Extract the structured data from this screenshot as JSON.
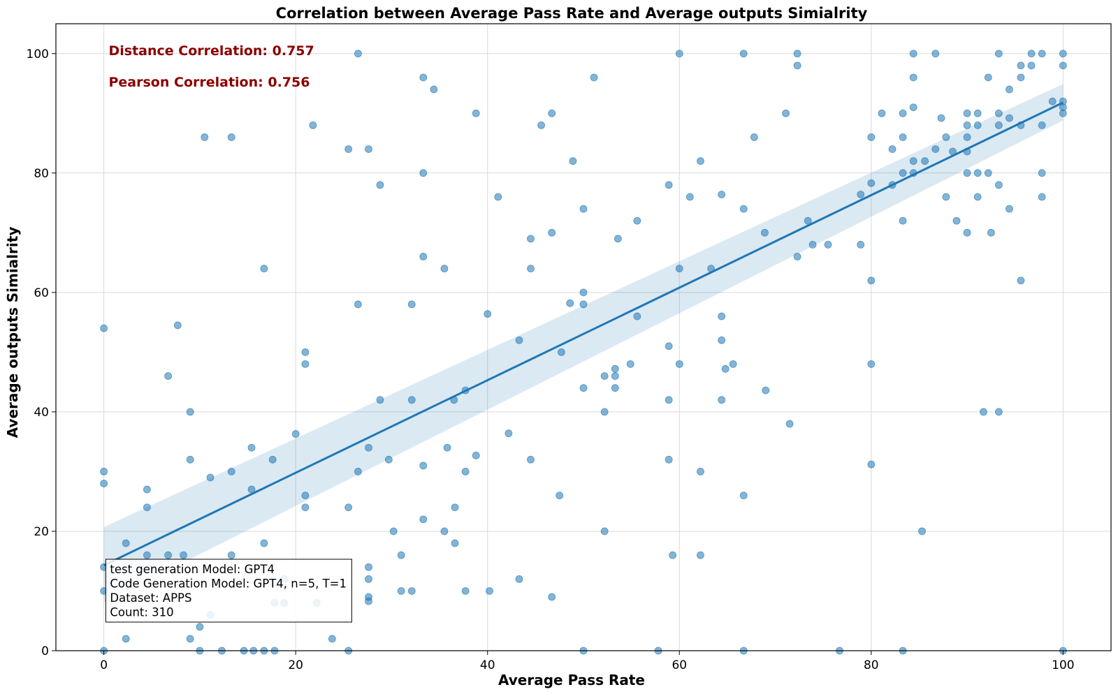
{
  "chart_data": {
    "type": "scatter",
    "title": "Correlation between Average Pass Rate and Average outputs Simialrity",
    "xlabel": "Average Pass Rate",
    "ylabel": "Average outputs Simialrity",
    "xlim": [
      -5,
      105
    ],
    "ylim": [
      0,
      105
    ],
    "xticks": [
      0,
      20,
      40,
      60,
      80,
      100
    ],
    "yticks": [
      0,
      20,
      40,
      60,
      80,
      100
    ],
    "grid": true,
    "colors": {
      "points": "#1f77b4",
      "regression_line": "#1f77b4",
      "confidence_band": "#1f77b4",
      "stats_text": "#8b0000",
      "grid": "#d9d9d9"
    },
    "stats": [
      "Distance Correlation: 0.757",
      "Pearson Correlation: 0.756"
    ],
    "info_box": [
      "test generation Model: GPT4",
      "Code Generation Model: GPT4, n=5, T=1",
      "Dataset: APPS",
      "Count: 310"
    ],
    "regression": {
      "x": [
        0,
        100
      ],
      "y": [
        14.3,
        91.8
      ],
      "ci_low_start": 8.1,
      "ci_high_start": 20.7,
      "ci_low_end": 88.8,
      "ci_high_end": 94.9
    },
    "points": [
      [
        0,
        54
      ],
      [
        0,
        30
      ],
      [
        0,
        28
      ],
      [
        0,
        10
      ],
      [
        0,
        0
      ],
      [
        0,
        14
      ],
      [
        2.3,
        18
      ],
      [
        2.3,
        2
      ],
      [
        4.5,
        27
      ],
      [
        4.5,
        24
      ],
      [
        4.5,
        16
      ],
      [
        6.7,
        46
      ],
      [
        6.7,
        16
      ],
      [
        7.7,
        54.5
      ],
      [
        8.3,
        16
      ],
      [
        9,
        40
      ],
      [
        9,
        32
      ],
      [
        9,
        2
      ],
      [
        10,
        4
      ],
      [
        10,
        0
      ],
      [
        10.5,
        86
      ],
      [
        11.1,
        29
      ],
      [
        11.1,
        6
      ],
      [
        12.3,
        0
      ],
      [
        13.3,
        86
      ],
      [
        13.3,
        30
      ],
      [
        13.3,
        16
      ],
      [
        14.6,
        0
      ],
      [
        15.4,
        34
      ],
      [
        15.4,
        27
      ],
      [
        15.6,
        0
      ],
      [
        16.7,
        64
      ],
      [
        16.7,
        18
      ],
      [
        16.7,
        0
      ],
      [
        17.6,
        32
      ],
      [
        17.8,
        0
      ],
      [
        17.8,
        8
      ],
      [
        18.8,
        8
      ],
      [
        18.8,
        12
      ],
      [
        20,
        36.3
      ],
      [
        21,
        50
      ],
      [
        21,
        48
      ],
      [
        21,
        26
      ],
      [
        21,
        24
      ],
      [
        21.8,
        88
      ],
      [
        22.2,
        8
      ],
      [
        23.8,
        2
      ],
      [
        25.5,
        84
      ],
      [
        25.5,
        24
      ],
      [
        25.5,
        0
      ],
      [
        26.5,
        100
      ],
      [
        26.5,
        58
      ],
      [
        26.5,
        30
      ],
      [
        27.6,
        84
      ],
      [
        27.6,
        34
      ],
      [
        27.6,
        14
      ],
      [
        27.6,
        12
      ],
      [
        27.6,
        9
      ],
      [
        27.6,
        8.3
      ],
      [
        28.8,
        78
      ],
      [
        28.8,
        42
      ],
      [
        30.2,
        20
      ],
      [
        29.7,
        32
      ],
      [
        31,
        16
      ],
      [
        31,
        10
      ],
      [
        32.1,
        58
      ],
      [
        32.1,
        42
      ],
      [
        32.1,
        10
      ],
      [
        33.3,
        96
      ],
      [
        33.3,
        80
      ],
      [
        33.3,
        66
      ],
      [
        33.3,
        31
      ],
      [
        33.3,
        22
      ],
      [
        34.4,
        94
      ],
      [
        35.5,
        64
      ],
      [
        35.5,
        20
      ],
      [
        35.8,
        34
      ],
      [
        36.5,
        42
      ],
      [
        36.6,
        24
      ],
      [
        36.6,
        18
      ],
      [
        37.7,
        43.6
      ],
      [
        37.7,
        30
      ],
      [
        37.7,
        10
      ],
      [
        38.8,
        90
      ],
      [
        38.8,
        32.7
      ],
      [
        40,
        56.4
      ],
      [
        40.2,
        10
      ],
      [
        41.1,
        76
      ],
      [
        42.2,
        36.4
      ],
      [
        43.3,
        52
      ],
      [
        43.3,
        12
      ],
      [
        44.5,
        69
      ],
      [
        44.5,
        64
      ],
      [
        44.5,
        32
      ],
      [
        45.6,
        88
      ],
      [
        46.7,
        90
      ],
      [
        46.7,
        70
      ],
      [
        46.7,
        9
      ],
      [
        47.5,
        26
      ],
      [
        47.7,
        50
      ],
      [
        48.6,
        58.2
      ],
      [
        48.9,
        82
      ],
      [
        50,
        74
      ],
      [
        50,
        60
      ],
      [
        50,
        58
      ],
      [
        50,
        44
      ],
      [
        50,
        0
      ],
      [
        51.1,
        96
      ],
      [
        52.2,
        46
      ],
      [
        52.2,
        40
      ],
      [
        52.2,
        20
      ],
      [
        53.3,
        47.2
      ],
      [
        53.3,
        46
      ],
      [
        53.3,
        44
      ],
      [
        53.6,
        69
      ],
      [
        54.9,
        48
      ],
      [
        55.6,
        72
      ],
      [
        55.6,
        56
      ],
      [
        57.8,
        0
      ],
      [
        58.9,
        78
      ],
      [
        58.9,
        51
      ],
      [
        58.9,
        42
      ],
      [
        58.9,
        32
      ],
      [
        59.3,
        16
      ],
      [
        60,
        100
      ],
      [
        60,
        64
      ],
      [
        60,
        48
      ],
      [
        61.1,
        76
      ],
      [
        62.2,
        82
      ],
      [
        62.2,
        30
      ],
      [
        62.2,
        16
      ],
      [
        63.3,
        64
      ],
      [
        64.4,
        76.4
      ],
      [
        64.4,
        56
      ],
      [
        64.4,
        52
      ],
      [
        64.4,
        42
      ],
      [
        64.8,
        47.2
      ],
      [
        65.6,
        48
      ],
      [
        66.7,
        100
      ],
      [
        66.7,
        74
      ],
      [
        66.7,
        26
      ],
      [
        66.7,
        0
      ],
      [
        67.8,
        86
      ],
      [
        68.9,
        70
      ],
      [
        69,
        43.6
      ],
      [
        71.1,
        90
      ],
      [
        71.5,
        38
      ],
      [
        72.3,
        100
      ],
      [
        72.3,
        98
      ],
      [
        72.3,
        66
      ],
      [
        73.4,
        72
      ],
      [
        73.9,
        68
      ],
      [
        75.5,
        68
      ],
      [
        76.7,
        0
      ],
      [
        78.9,
        76.4
      ],
      [
        78.9,
        68
      ],
      [
        80,
        86
      ],
      [
        80,
        78.3
      ],
      [
        80,
        62
      ],
      [
        80,
        48
      ],
      [
        80,
        31.2
      ],
      [
        81.1,
        90
      ],
      [
        82.2,
        84
      ],
      [
        82.2,
        78
      ],
      [
        83.3,
        90
      ],
      [
        83.3,
        86
      ],
      [
        83.3,
        80
      ],
      [
        83.3,
        72
      ],
      [
        83.3,
        0
      ],
      [
        84.4,
        100
      ],
      [
        84.4,
        96
      ],
      [
        84.4,
        91
      ],
      [
        84.4,
        82
      ],
      [
        84.4,
        80
      ],
      [
        85.3,
        20
      ],
      [
        85.6,
        82
      ],
      [
        86.7,
        100
      ],
      [
        86.7,
        84
      ],
      [
        87.3,
        89.2
      ],
      [
        87.8,
        86
      ],
      [
        87.8,
        76
      ],
      [
        88.5,
        83.6
      ],
      [
        88.9,
        72
      ],
      [
        90,
        90
      ],
      [
        90,
        88
      ],
      [
        90,
        86
      ],
      [
        90,
        83.6
      ],
      [
        90,
        80
      ],
      [
        90,
        70
      ],
      [
        91.1,
        90
      ],
      [
        91.1,
        88
      ],
      [
        91.1,
        80
      ],
      [
        91.1,
        76
      ],
      [
        91.7,
        40
      ],
      [
        92.2,
        96
      ],
      [
        92.2,
        80
      ],
      [
        92.5,
        70
      ],
      [
        93.3,
        100
      ],
      [
        93.3,
        90
      ],
      [
        93.3,
        88
      ],
      [
        93.3,
        78
      ],
      [
        93.3,
        40
      ],
      [
        94.4,
        94
      ],
      [
        94.4,
        89.2
      ],
      [
        94.4,
        74
      ],
      [
        95.6,
        98
      ],
      [
        95.6,
        96
      ],
      [
        95.6,
        88
      ],
      [
        95.6,
        62
      ],
      [
        96.7,
        100
      ],
      [
        96.7,
        98
      ],
      [
        97.8,
        100
      ],
      [
        97.8,
        88
      ],
      [
        97.8,
        80
      ],
      [
        97.8,
        76
      ],
      [
        98.9,
        92
      ],
      [
        100,
        100
      ],
      [
        100,
        98
      ],
      [
        100,
        92
      ],
      [
        100,
        91
      ],
      [
        100,
        90
      ],
      [
        100,
        0
      ]
    ]
  }
}
